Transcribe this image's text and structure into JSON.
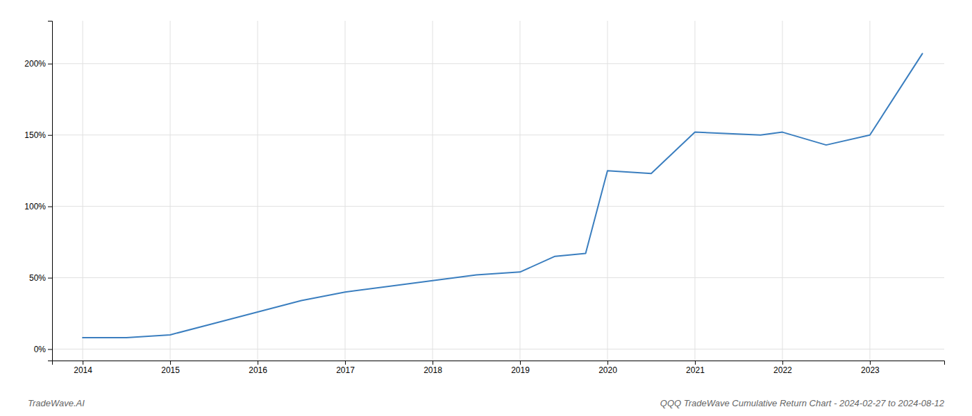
{
  "chart_data": {
    "type": "line",
    "title": "QQQ TradeWave Cumulative Return Chart - 2024-02-27 to 2024-08-12",
    "annotations": [
      "TradeWave.AI"
    ],
    "color": "#3a7ebf",
    "grid": true,
    "x": [
      2014.0,
      2014.12,
      2014.5,
      2014.75,
      2015.0,
      2015.5,
      2016.0,
      2016.5,
      2017.0,
      2017.5,
      2018.0,
      2018.5,
      2019.0,
      2019.4,
      2019.75,
      2020.0,
      2020.5,
      2021.0,
      2021.75,
      2022.0,
      2022.5,
      2023.0,
      2023.6
    ],
    "values": [
      8,
      8,
      8,
      9,
      10,
      18,
      26,
      34,
      40,
      44,
      48,
      52,
      54,
      65,
      67,
      125,
      123,
      152,
      150,
      152,
      143,
      150,
      207
    ],
    "xlim": [
      2013.65,
      2023.85
    ],
    "xticks": [
      2014,
      2015,
      2016,
      2017,
      2018,
      2019,
      2020,
      2021,
      2022,
      2023
    ],
    "ylim": [
      -8,
      230
    ],
    "yticks": [
      {
        "value": 0,
        "label": "0%"
      },
      {
        "value": 50,
        "label": "50%"
      },
      {
        "value": 100,
        "label": "100%"
      },
      {
        "value": 150,
        "label": "150%"
      },
      {
        "value": 200,
        "label": "200%"
      }
    ]
  }
}
